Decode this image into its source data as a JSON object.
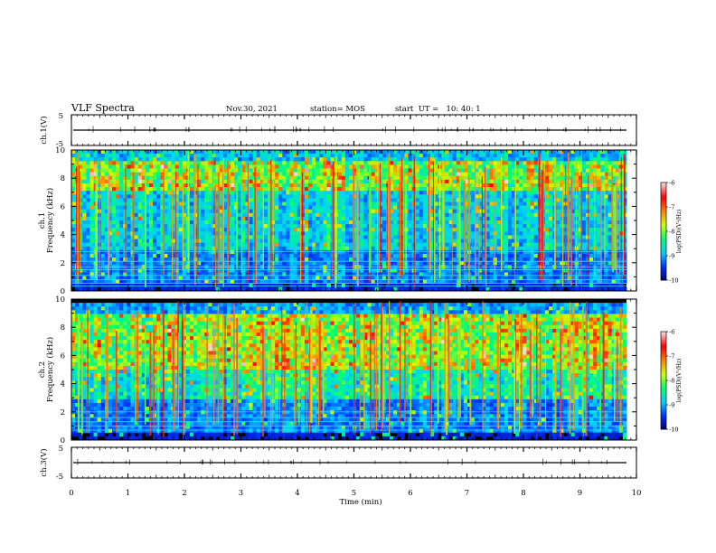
{
  "header": {
    "title": "VLF Spectra",
    "date": "Nov.30, 2021",
    "station": "station= MOS",
    "start": "start  UT =   10: 40: 1"
  },
  "colors": {
    "background": "#000000",
    "trace": "#000000",
    "colormap": [
      "#000070",
      "#0030ff",
      "#00d0ff",
      "#00ff70",
      "#d0ff00",
      "#ff8000",
      "#ff0000",
      "#ffd8d8"
    ]
  },
  "chart_data": [
    {
      "type": "line",
      "name": "ch1-waveform",
      "ylabel": "ch.1(V)",
      "ylim": [
        -5,
        5
      ],
      "yticks": [
        "5",
        "-5"
      ],
      "baseline": 0
    },
    {
      "type": "heatmap",
      "name": "ch1-spectrogram",
      "ylabel": "ch.1\nFrequency (kHz)",
      "xlim": [
        0,
        10
      ],
      "ylim": [
        0,
        10
      ],
      "yticks": [
        "0",
        "2",
        "4",
        "6",
        "8",
        "10"
      ],
      "colorbar": {
        "label": "log(PSD)(V²/Hz)",
        "range": [
          -10,
          -6
        ],
        "ticks": [
          "-6",
          "-7",
          "-8",
          "-9",
          "-10"
        ]
      },
      "lines_khz": [
        0.35,
        0.55,
        0.8,
        1.1,
        1.5,
        1.7,
        2.1,
        2.8
      ]
    },
    {
      "type": "heatmap",
      "name": "ch2-spectrogram",
      "ylabel": "ch.2\nFrequency (kHz)",
      "xlim": [
        0,
        10
      ],
      "ylim": [
        0,
        10
      ],
      "yticks": [
        "0",
        "2",
        "4",
        "6",
        "8",
        "10"
      ],
      "colorbar": {
        "label": "log(PSD)(V²/Hz)",
        "range": [
          -10,
          -6
        ],
        "ticks": [
          "-6",
          "-7",
          "-8",
          "-9",
          "-10"
        ]
      },
      "lines_khz": [
        0.7,
        1.0,
        1.3,
        1.6,
        2.0
      ]
    },
    {
      "type": "line",
      "name": "ch3-waveform",
      "ylabel": "ch.3(V)",
      "ylim": [
        -5,
        5
      ],
      "yticks": [
        "5",
        "-5"
      ],
      "baseline": 0
    }
  ],
  "xaxis": {
    "label": "Time (min)",
    "range": [
      0,
      10
    ],
    "ticks": [
      "0",
      "1",
      "2",
      "3",
      "4",
      "5",
      "6",
      "7",
      "8",
      "9",
      "10"
    ]
  }
}
